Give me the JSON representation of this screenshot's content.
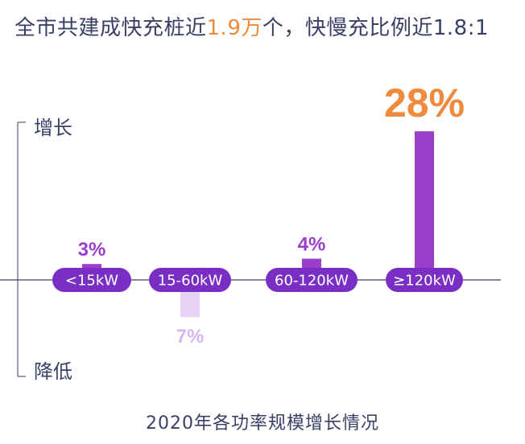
{
  "headline": {
    "prefix": "全市共建成快充桩近",
    "highlight": "1.9万",
    "suffix": "个，快慢充比例近1.8:1"
  },
  "footer": {
    "title": "2020年各功率规模增长情况"
  },
  "colors": {
    "text": "#3a3f66",
    "highlight": "#f08a3c",
    "increase": "#9b3ec9",
    "decrease": "#e6d2f3",
    "decrease_label": "#d6b6ec",
    "pill": "#7a2fc4",
    "axis": "#3a3f66"
  },
  "chart_data": {
    "type": "bar",
    "title": "2020年各功率规模增长情况",
    "categories": [
      "<15kW",
      "15-60kW",
      "60-120kW",
      "≥120kW"
    ],
    "values": [
      3,
      -7,
      4,
      28
    ],
    "value_labels": [
      "3%",
      "7%",
      "4%",
      "28%"
    ],
    "unit": "%",
    "y_axis_labels": {
      "top": "增长",
      "bottom": "降低"
    },
    "ylim": [
      -12,
      32
    ],
    "grid": false
  }
}
